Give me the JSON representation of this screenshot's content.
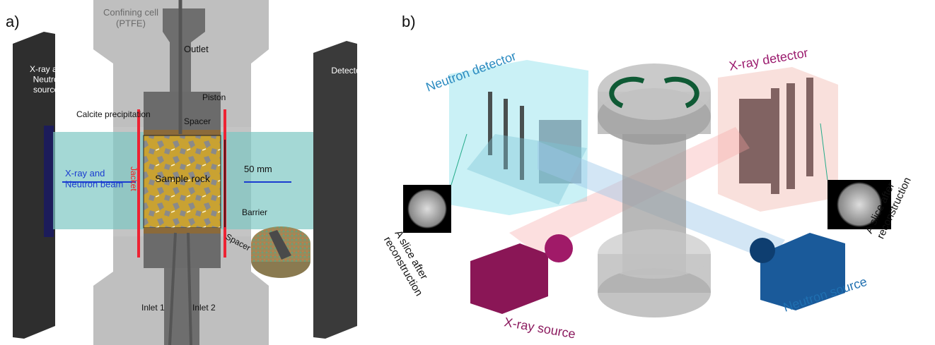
{
  "panel_a": {
    "label": "a)",
    "confining_cell": [
      "Confining cell",
      "(PTFE)"
    ],
    "outlet": "Outlet",
    "sources": [
      "X-ray and",
      "Neutron",
      "sources"
    ],
    "detectors": "Detectors",
    "piston": "Piston",
    "calcite": "Calcite precipitation",
    "spacer_top": "Spacer",
    "jacket": "Jacket",
    "beam": [
      "X-ray and",
      "Neutron beam"
    ],
    "sample": "Sample rock",
    "length": "50 mm",
    "barrier": "Barrier",
    "spacer_bottom": "Spacer",
    "inlet_1": "Inlet 1",
    "inlet_2": "Inlet 2"
  },
  "panel_b": {
    "label": "b)",
    "neutron_detector": "Neutron detector",
    "xray_detector": "X-ray detector",
    "slice_left": [
      "A slice after",
      "reconstruction"
    ],
    "slice_right": [
      "A slice after",
      "reconstruction"
    ],
    "xray_source": "X-ray source",
    "neutron_source": "Neutron source"
  }
}
